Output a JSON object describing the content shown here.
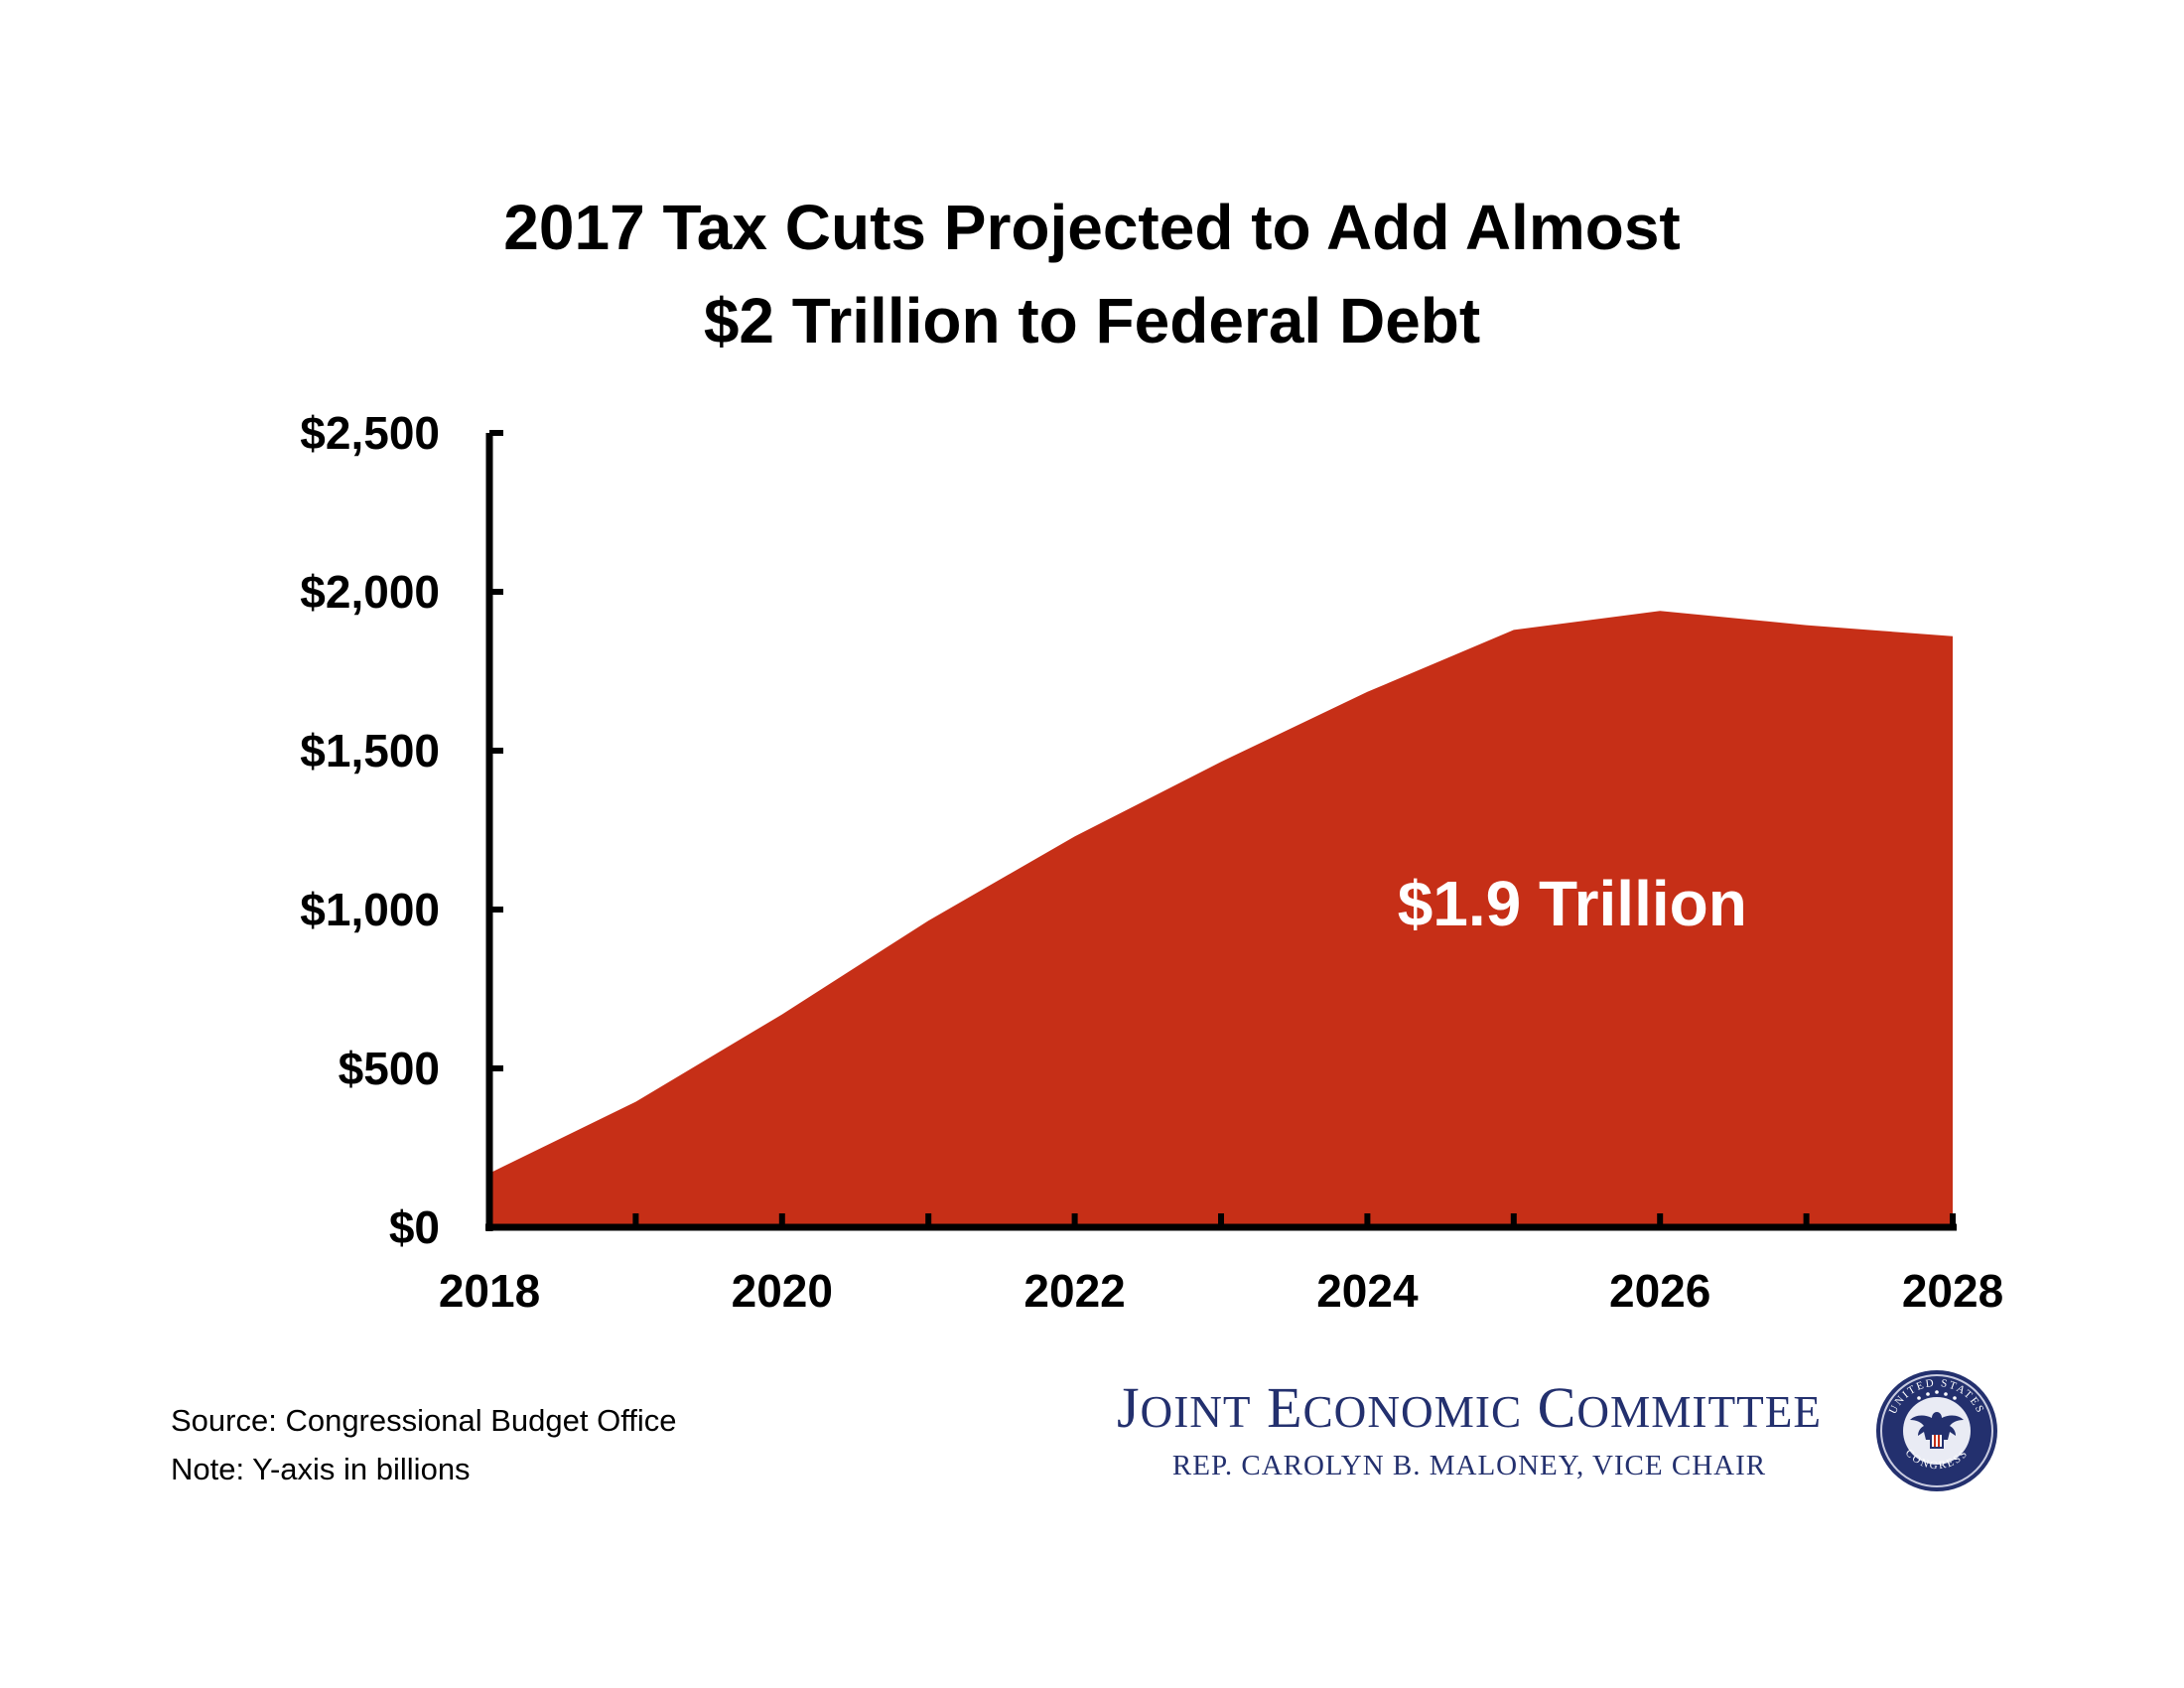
{
  "title_line1": "2017 Tax Cuts Projected to Add Almost",
  "title_line2": "$2 Trillion to Federal Debt",
  "chart_data": {
    "type": "area",
    "title": "2017 Tax Cuts Projected to Add Almost $2 Trillion to Federal Debt",
    "xlabel": "",
    "ylabel": "",
    "x": [
      2018,
      2019,
      2020,
      2021,
      2022,
      2023,
      2024,
      2025,
      2026,
      2027,
      2028
    ],
    "values": [
      170,
      395,
      670,
      965,
      1230,
      1465,
      1685,
      1880,
      1940,
      1895,
      1860
    ],
    "xlim": [
      2018,
      2028
    ],
    "ylim": [
      0,
      2500
    ],
    "yticks": [
      0,
      500,
      1000,
      1500,
      2000,
      2500
    ],
    "ytick_labels": [
      "$0",
      "$500",
      "$1,000",
      "$1,500",
      "$2,000",
      "$2,500"
    ],
    "xtick_labels": [
      "2018",
      "2020",
      "2022",
      "2024",
      "2026",
      "2028"
    ],
    "fill_color": "#c62f17",
    "grid": false,
    "annotation": "$1.9 Trillion"
  },
  "notes": {
    "source": "Source: Congressional Budget Office",
    "note": "Note: Y-axis in billions"
  },
  "logo": {
    "name": "Joint Economic Committee",
    "subtitle": "REP. CAROLYN B. MALONEY, VICE CHAIR",
    "seal_text_top": "UNITED STATES",
    "seal_text_bottom": "CONGRESS",
    "color": "#23306e"
  }
}
